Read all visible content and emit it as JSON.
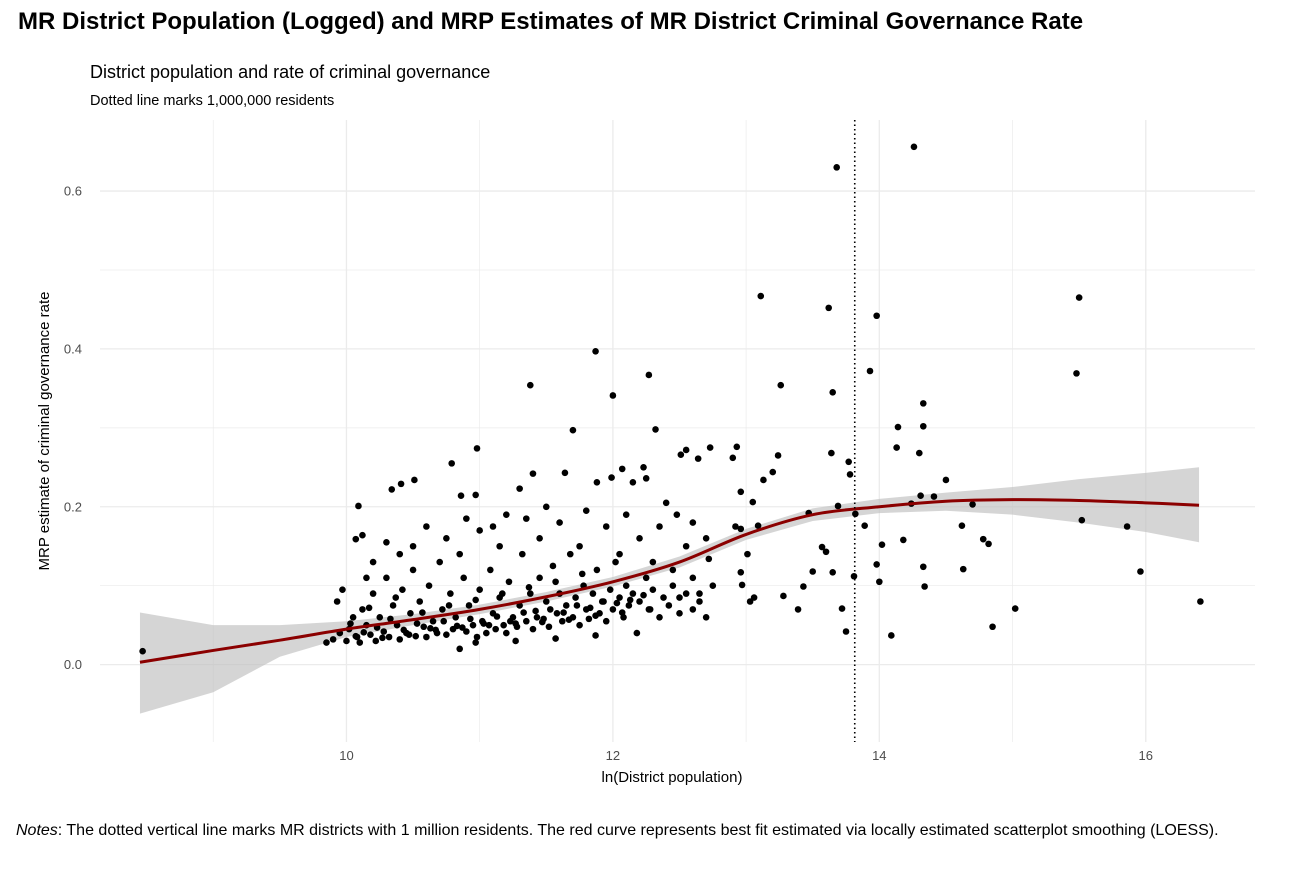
{
  "colors": {
    "points": "#000000",
    "curve": "#8b0000",
    "band": "#bebebe",
    "grid": "#ebebeb"
  },
  "notes": {
    "label": "Notes",
    "text": ": The dotted vertical line marks MR districts with 1 million residents. The red curve represents best fit estimated via locally estimated scatterplot smoothing (LOESS)."
  },
  "chart_data": {
    "type": "scatter",
    "title": "MR District Population (Logged) and MRP Estimates of MR District Criminal Governance Rate",
    "subtitle": "District population and rate of criminal governance",
    "caption": "Dotted line marks 1,000,000 residents",
    "xlabel": "ln(District population)",
    "ylabel": "MRP estimate of criminal governance rate",
    "xlim": [
      8.15,
      16.82
    ],
    "ylim": [
      -0.098,
      0.69
    ],
    "xticks": [
      10,
      12,
      14,
      16
    ],
    "xtick_labels": [
      "10",
      "12",
      "14",
      "16"
    ],
    "yticks": [
      0.0,
      0.2,
      0.4,
      0.6
    ],
    "ytick_labels": [
      "0.0",
      "0.2",
      "0.4",
      "0.6"
    ],
    "grid": true,
    "vline": 13.8155,
    "points": [
      [
        13.68,
        0.63
      ],
      [
        14.26,
        0.656
      ],
      [
        13.11,
        0.467
      ],
      [
        13.62,
        0.452
      ],
      [
        13.98,
        0.442
      ],
      [
        15.5,
        0.465
      ],
      [
        15.48,
        0.369
      ],
      [
        13.93,
        0.372
      ],
      [
        13.65,
        0.345
      ],
      [
        13.26,
        0.354
      ],
      [
        14.33,
        0.331
      ],
      [
        14.14,
        0.301
      ],
      [
        14.33,
        0.302
      ],
      [
        14.13,
        0.275
      ],
      [
        14.3,
        0.268
      ],
      [
        14.5,
        0.234
      ],
      [
        13.64,
        0.268
      ],
      [
        13.77,
        0.257
      ],
      [
        13.78,
        0.241
      ],
      [
        13.13,
        0.234
      ],
      [
        13.2,
        0.244
      ],
      [
        13.24,
        0.265
      ],
      [
        14.31,
        0.214
      ],
      [
        14.41,
        0.213
      ],
      [
        14.24,
        0.204
      ],
      [
        14.7,
        0.203
      ],
      [
        14.62,
        0.176
      ],
      [
        14.78,
        0.159
      ],
      [
        14.82,
        0.153
      ],
      [
        14.63,
        0.121
      ],
      [
        15.52,
        0.183
      ],
      [
        15.86,
        0.175
      ],
      [
        15.96,
        0.118
      ],
      [
        16.41,
        0.08
      ],
      [
        15.02,
        0.071
      ],
      [
        14.85,
        0.048
      ],
      [
        14.09,
        0.037
      ],
      [
        13.75,
        0.042
      ],
      [
        13.98,
        0.127
      ],
      [
        14.02,
        0.152
      ],
      [
        14.0,
        0.105
      ],
      [
        14.18,
        0.158
      ],
      [
        14.33,
        0.124
      ],
      [
        14.34,
        0.099
      ],
      [
        13.89,
        0.176
      ],
      [
        13.82,
        0.191
      ],
      [
        13.69,
        0.201
      ],
      [
        13.47,
        0.192
      ],
      [
        13.81,
        0.112
      ],
      [
        13.57,
        0.149
      ],
      [
        13.6,
        0.143
      ],
      [
        13.65,
        0.117
      ],
      [
        13.72,
        0.071
      ],
      [
        13.5,
        0.118
      ],
      [
        13.43,
        0.099
      ],
      [
        13.39,
        0.07
      ],
      [
        13.28,
        0.087
      ],
      [
        12.96,
        0.117
      ],
      [
        13.01,
        0.14
      ],
      [
        13.09,
        0.176
      ],
      [
        13.05,
        0.206
      ],
      [
        12.96,
        0.172
      ],
      [
        12.96,
        0.219
      ],
      [
        12.97,
        0.101
      ],
      [
        13.06,
        0.085
      ],
      [
        13.03,
        0.08
      ],
      [
        12.92,
        0.175
      ],
      [
        12.72,
        0.134
      ],
      [
        11.87,
        0.397
      ],
      [
        12.27,
        0.367
      ],
      [
        11.38,
        0.354
      ],
      [
        12.0,
        0.341
      ],
      [
        11.7,
        0.297
      ],
      [
        12.32,
        0.298
      ],
      [
        8.47,
        0.017
      ],
      [
        10.79,
        0.255
      ],
      [
        10.98,
        0.274
      ],
      [
        10.34,
        0.222
      ],
      [
        10.41,
        0.229
      ],
      [
        10.51,
        0.234
      ],
      [
        11.3,
        0.223
      ],
      [
        11.4,
        0.242
      ],
      [
        11.64,
        0.243
      ],
      [
        12.07,
        0.248
      ],
      [
        12.23,
        0.25
      ],
      [
        12.51,
        0.266
      ],
      [
        12.55,
        0.272
      ],
      [
        12.73,
        0.275
      ],
      [
        12.93,
        0.276
      ],
      [
        12.9,
        0.262
      ],
      [
        12.64,
        0.261
      ],
      [
        12.25,
        0.236
      ],
      [
        11.88,
        0.231
      ],
      [
        11.99,
        0.237
      ],
      [
        12.15,
        0.231
      ],
      [
        10.86,
        0.214
      ],
      [
        10.97,
        0.215
      ],
      [
        10.09,
        0.201
      ],
      [
        10.12,
        0.164
      ],
      [
        10.07,
        0.159
      ],
      [
        12.4,
        0.205
      ],
      [
        12.48,
        0.19
      ],
      [
        12.6,
        0.18
      ],
      [
        12.7,
        0.16
      ],
      [
        12.55,
        0.15
      ],
      [
        12.35,
        0.175
      ],
      [
        12.2,
        0.16
      ],
      [
        12.1,
        0.19
      ],
      [
        11.95,
        0.175
      ],
      [
        11.8,
        0.195
      ],
      [
        11.6,
        0.18
      ],
      [
        11.5,
        0.2
      ],
      [
        11.35,
        0.185
      ],
      [
        11.2,
        0.19
      ],
      [
        11.1,
        0.175
      ],
      [
        11.0,
        0.17
      ],
      [
        10.9,
        0.185
      ],
      [
        10.75,
        0.16
      ],
      [
        10.6,
        0.175
      ],
      [
        10.5,
        0.15
      ],
      [
        10.4,
        0.14
      ],
      [
        10.3,
        0.155
      ],
      [
        10.2,
        0.13
      ],
      [
        10.15,
        0.11
      ],
      [
        10.85,
        0.14
      ],
      [
        11.15,
        0.15
      ],
      [
        11.45,
        0.16
      ],
      [
        11.75,
        0.15
      ],
      [
        12.05,
        0.14
      ],
      [
        12.3,
        0.13
      ],
      [
        12.45,
        0.12
      ],
      [
        12.6,
        0.11
      ],
      [
        12.75,
        0.1
      ],
      [
        12.65,
        0.09
      ],
      [
        12.5,
        0.085
      ],
      [
        9.85,
        0.028
      ],
      [
        9.9,
        0.032
      ],
      [
        9.95,
        0.04
      ],
      [
        9.97,
        0.095
      ],
      [
        9.93,
        0.08
      ],
      [
        10.0,
        0.03
      ],
      [
        10.02,
        0.045
      ],
      [
        10.05,
        0.06
      ],
      [
        10.08,
        0.035
      ],
      [
        10.1,
        0.028
      ],
      [
        10.12,
        0.07
      ],
      [
        10.15,
        0.05
      ],
      [
        10.18,
        0.038
      ],
      [
        10.2,
        0.09
      ],
      [
        10.22,
        0.03
      ],
      [
        10.25,
        0.06
      ],
      [
        10.28,
        0.042
      ],
      [
        10.3,
        0.11
      ],
      [
        10.32,
        0.035
      ],
      [
        10.35,
        0.075
      ],
      [
        10.38,
        0.05
      ],
      [
        10.4,
        0.032
      ],
      [
        10.42,
        0.095
      ],
      [
        10.45,
        0.04
      ],
      [
        10.48,
        0.065
      ],
      [
        10.5,
        0.12
      ],
      [
        10.52,
        0.036
      ],
      [
        10.55,
        0.08
      ],
      [
        10.58,
        0.048
      ],
      [
        10.6,
        0.035
      ],
      [
        10.62,
        0.1
      ],
      [
        10.65,
        0.055
      ],
      [
        10.68,
        0.04
      ],
      [
        10.7,
        0.13
      ],
      [
        10.72,
        0.07
      ],
      [
        10.75,
        0.038
      ],
      [
        10.78,
        0.09
      ],
      [
        10.8,
        0.045
      ],
      [
        10.82,
        0.06
      ],
      [
        10.85,
        0.02
      ],
      [
        10.88,
        0.11
      ],
      [
        10.9,
        0.042
      ],
      [
        10.92,
        0.075
      ],
      [
        10.95,
        0.05
      ],
      [
        10.98,
        0.035
      ],
      [
        11.0,
        0.095
      ],
      [
        11.02,
        0.055
      ],
      [
        11.05,
        0.04
      ],
      [
        11.08,
        0.12
      ],
      [
        11.1,
        0.065
      ],
      [
        11.12,
        0.045
      ],
      [
        11.15,
        0.085
      ],
      [
        11.18,
        0.05
      ],
      [
        11.2,
        0.04
      ],
      [
        11.22,
        0.105
      ],
      [
        11.25,
        0.06
      ],
      [
        11.28,
        0.048
      ],
      [
        11.3,
        0.075
      ],
      [
        11.32,
        0.14
      ],
      [
        11.35,
        0.055
      ],
      [
        11.38,
        0.09
      ],
      [
        11.4,
        0.045
      ],
      [
        11.42,
        0.068
      ],
      [
        11.45,
        0.11
      ],
      [
        11.48,
        0.058
      ],
      [
        11.5,
        0.08
      ],
      [
        11.52,
        0.048
      ],
      [
        11.55,
        0.125
      ],
      [
        11.58,
        0.065
      ],
      [
        11.6,
        0.09
      ],
      [
        11.62,
        0.055
      ],
      [
        11.65,
        0.075
      ],
      [
        11.68,
        0.14
      ],
      [
        11.7,
        0.06
      ],
      [
        11.72,
        0.085
      ],
      [
        11.75,
        0.05
      ],
      [
        11.78,
        0.1
      ],
      [
        11.8,
        0.07
      ],
      [
        11.82,
        0.058
      ],
      [
        11.85,
        0.09
      ],
      [
        11.88,
        0.12
      ],
      [
        11.9,
        0.065
      ],
      [
        11.92,
        0.08
      ],
      [
        11.95,
        0.055
      ],
      [
        11.98,
        0.095
      ],
      [
        12.0,
        0.07
      ],
      [
        12.02,
        0.13
      ],
      [
        12.05,
        0.085
      ],
      [
        12.08,
        0.06
      ],
      [
        12.1,
        0.1
      ],
      [
        12.12,
        0.075
      ],
      [
        12.15,
        0.09
      ],
      [
        12.18,
        0.04
      ],
      [
        12.2,
        0.08
      ],
      [
        12.25,
        0.11
      ],
      [
        12.28,
        0.07
      ],
      [
        12.3,
        0.095
      ],
      [
        12.35,
        0.06
      ],
      [
        12.38,
        0.085
      ],
      [
        12.42,
        0.075
      ],
      [
        12.45,
        0.1
      ],
      [
        12.5,
        0.065
      ],
      [
        12.55,
        0.09
      ],
      [
        12.6,
        0.07
      ],
      [
        12.65,
        0.08
      ],
      [
        12.7,
        0.06
      ],
      [
        10.03,
        0.052
      ],
      [
        10.13,
        0.041
      ],
      [
        10.23,
        0.047
      ],
      [
        10.33,
        0.058
      ],
      [
        10.43,
        0.044
      ],
      [
        10.53,
        0.052
      ],
      [
        10.63,
        0.046
      ],
      [
        10.73,
        0.055
      ],
      [
        10.83,
        0.049
      ],
      [
        10.93,
        0.058
      ],
      [
        11.03,
        0.052
      ],
      [
        11.13,
        0.061
      ],
      [
        11.23,
        0.055
      ],
      [
        11.33,
        0.066
      ],
      [
        11.43,
        0.06
      ],
      [
        11.53,
        0.07
      ],
      [
        11.63,
        0.066
      ],
      [
        11.73,
        0.075
      ],
      [
        11.83,
        0.072
      ],
      [
        11.93,
        0.08
      ],
      [
        12.03,
        0.078
      ],
      [
        12.13,
        0.082
      ],
      [
        12.23,
        0.088
      ],
      [
        10.07,
        0.036
      ],
      [
        10.27,
        0.034
      ],
      [
        10.47,
        0.038
      ],
      [
        10.67,
        0.044
      ],
      [
        10.87,
        0.047
      ],
      [
        11.07,
        0.05
      ],
      [
        11.27,
        0.052
      ],
      [
        11.47,
        0.054
      ],
      [
        11.67,
        0.057
      ],
      [
        11.87,
        0.062
      ],
      [
        12.07,
        0.066
      ],
      [
        12.27,
        0.07
      ],
      [
        10.57,
        0.066
      ],
      [
        10.77,
        0.075
      ],
      [
        10.97,
        0.082
      ],
      [
        11.17,
        0.09
      ],
      [
        11.37,
        0.098
      ],
      [
        11.57,
        0.105
      ],
      [
        11.77,
        0.115
      ],
      [
        10.17,
        0.072
      ],
      [
        10.37,
        0.085
      ],
      [
        10.97,
        0.028
      ],
      [
        11.27,
        0.03
      ],
      [
        11.57,
        0.033
      ],
      [
        11.87,
        0.037
      ]
    ],
    "loess": {
      "x": [
        8.45,
        9.0,
        9.5,
        10.0,
        10.5,
        11.0,
        11.5,
        12.0,
        12.5,
        13.0,
        13.5,
        14.0,
        14.5,
        15.0,
        15.5,
        16.0,
        16.4
      ],
      "y": [
        0.003,
        0.018,
        0.031,
        0.045,
        0.057,
        0.07,
        0.086,
        0.105,
        0.13,
        0.165,
        0.19,
        0.2,
        0.207,
        0.209,
        0.208,
        0.205,
        0.202
      ],
      "lower": [
        -0.062,
        -0.035,
        0.01,
        0.035,
        0.05,
        0.064,
        0.08,
        0.099,
        0.123,
        0.158,
        0.182,
        0.192,
        0.195,
        0.19,
        0.18,
        0.168,
        0.155
      ],
      "upper": [
        0.066,
        0.05,
        0.05,
        0.055,
        0.064,
        0.076,
        0.092,
        0.111,
        0.137,
        0.172,
        0.198,
        0.21,
        0.218,
        0.225,
        0.235,
        0.243,
        0.25
      ]
    }
  }
}
